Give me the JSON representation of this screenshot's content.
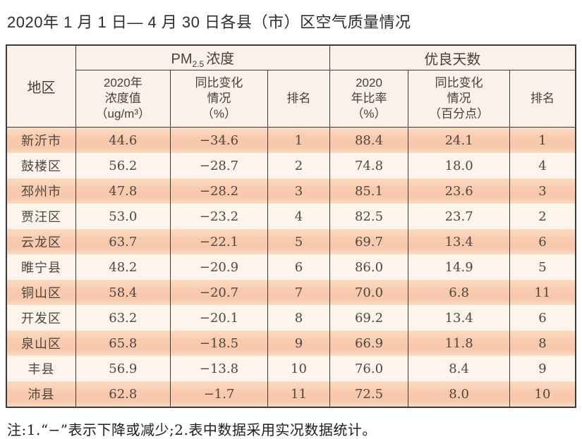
{
  "title": "2020年 1 月 1 日— 4 月 30 日各县（市）区空气质量情况",
  "note": "注:1.“−”表示下降或减少;2.表中数据采用实况数据统计。",
  "colors": {
    "stripe-odd": "#f8c9ac",
    "stripe-odd-light": "#fbdcc5",
    "stripe-even": "#fdf4ec",
    "header-bg": "#fcf1e9",
    "border": "#3a3a3a",
    "text": "#4d4742",
    "title": "#2d2d2d"
  },
  "header": {
    "region": "地区",
    "pm_group": {
      "base": "PM",
      "sub": "2.5",
      "rest": "浓度"
    },
    "days_group": "优良天数",
    "pm_value_lines": [
      "2020年",
      "浓度值",
      "（ug/m³）"
    ],
    "pm_change_lines": [
      "同比变化",
      "情况",
      "（%）"
    ],
    "pm_rank": "排名",
    "days_ratio_lines": [
      "2020",
      "年比率",
      "（%）"
    ],
    "days_change_lines": [
      "同比变化",
      "情况",
      "（百分点）"
    ],
    "days_rank": "排名"
  },
  "chart_data": {
    "type": "table",
    "title": "2020年1月1日—4月30日各县（市）区空气质量情况",
    "column_groups": [
      "地区",
      "PM2.5浓度",
      "优良天数"
    ],
    "columns": [
      "地区",
      "PM2.5浓度 2020年浓度值（ug/m³）",
      "PM2.5浓度 同比变化情况（%）",
      "PM2.5浓度 排名",
      "优良天数 2020年比率（%）",
      "优良天数 同比变化情况（百分点）",
      "优良天数 排名"
    ],
    "rows": [
      [
        "新沂市",
        "44.6",
        "−34.6",
        "1",
        "88.4",
        "24.1",
        "1"
      ],
      [
        "鼓楼区",
        "56.2",
        "−28.7",
        "2",
        "74.8",
        "18.0",
        "4"
      ],
      [
        "邳州市",
        "47.8",
        "−28.2",
        "3",
        "85.1",
        "23.6",
        "3"
      ],
      [
        "贾汪区",
        "53.0",
        "−23.2",
        "4",
        "82.5",
        "23.7",
        "2"
      ],
      [
        "云龙区",
        "63.7",
        "−22.1",
        "5",
        "69.7",
        "13.4",
        "6"
      ],
      [
        "睢宁县",
        "48.2",
        "−20.9",
        "6",
        "86.0",
        "14.9",
        "5"
      ],
      [
        "铜山区",
        "58.4",
        "−20.7",
        "7",
        "70.0",
        "6.8",
        "11"
      ],
      [
        "开发区",
        "63.2",
        "−20.1",
        "8",
        "69.2",
        "13.4",
        "6"
      ],
      [
        "泉山区",
        "65.8",
        "−18.5",
        "9",
        "66.9",
        "11.8",
        "8"
      ],
      [
        "丰县",
        "56.9",
        "−13.8",
        "10",
        "76.0",
        "8.4",
        "9"
      ],
      [
        "沛县",
        "62.8",
        "−1.7",
        "11",
        "72.5",
        "8.0",
        "10"
      ]
    ],
    "note": "注:1.“−”表示下降或减少;2.表中数据采用实况数据统计。"
  }
}
